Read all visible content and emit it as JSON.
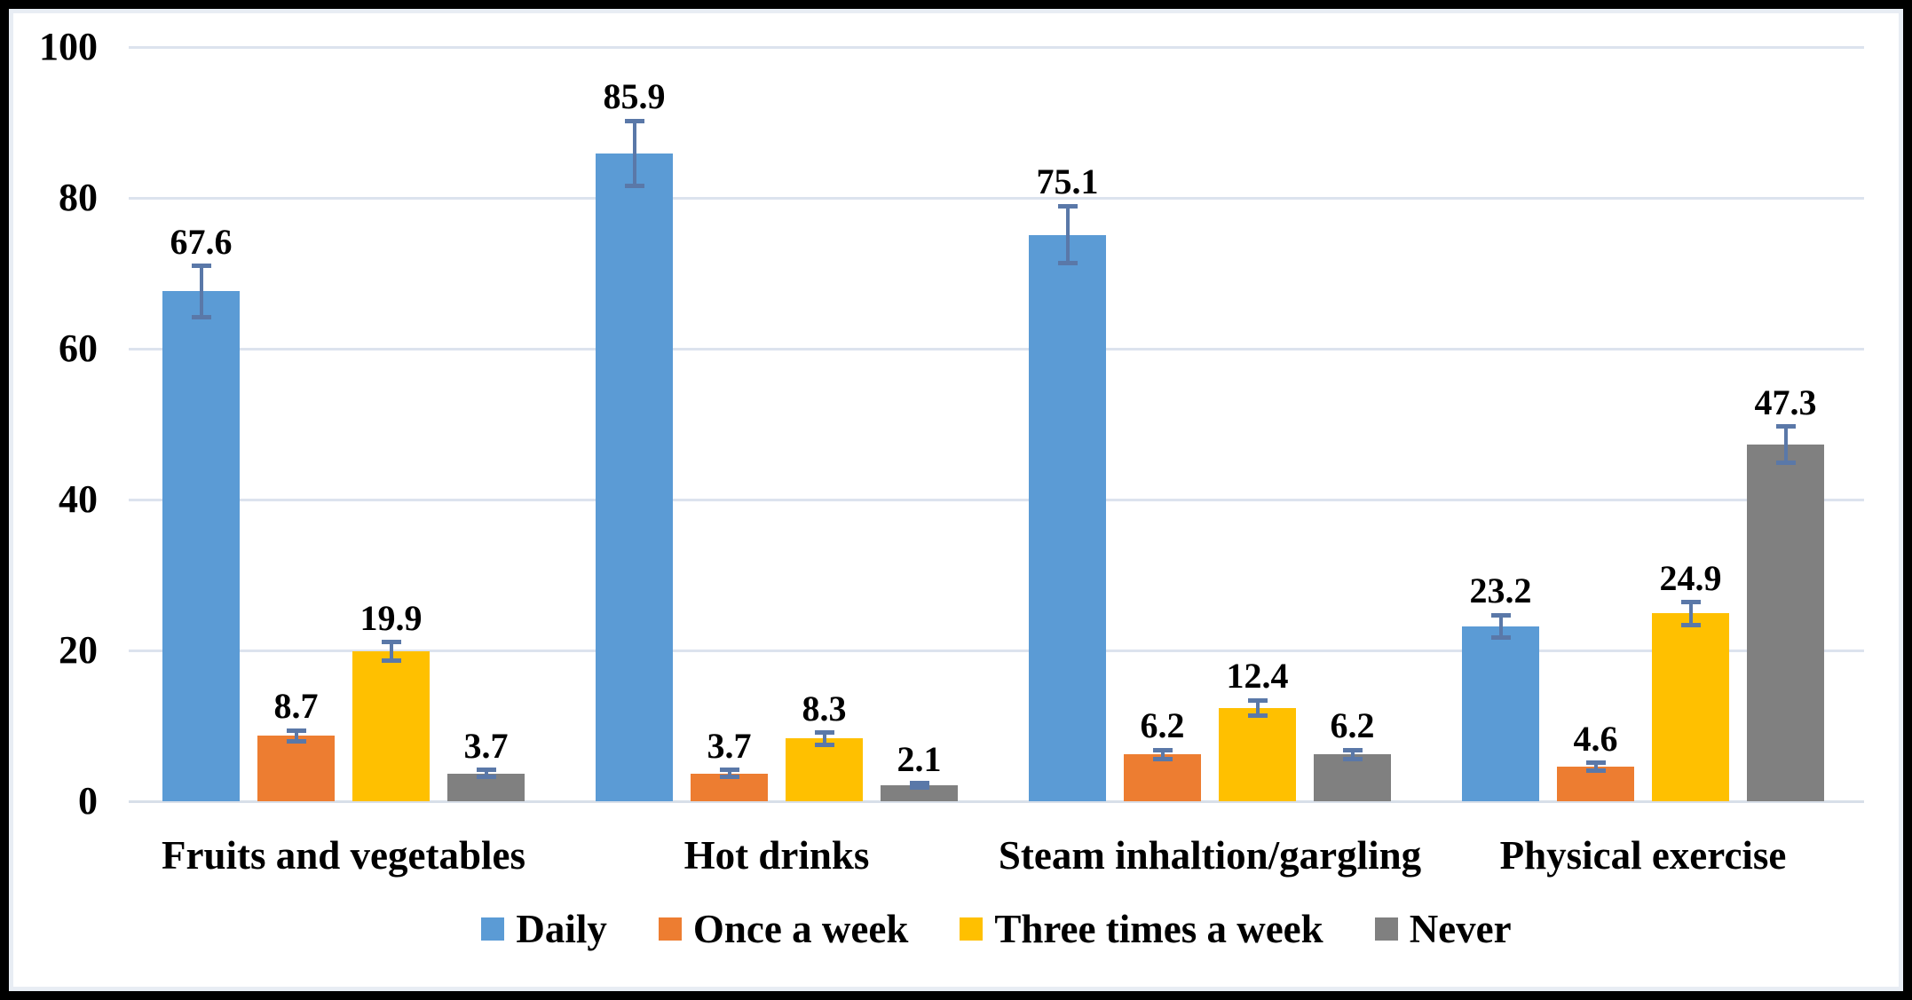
{
  "figure": {
    "background": "#ffffff",
    "frame_color": "#000000",
    "inner_edge_color": "#e8edf4"
  },
  "chart_data": {
    "type": "bar",
    "title": "",
    "categories": [
      "Fruits and vegetables",
      "Hot drinks",
      "Steam inhaltion/gargling",
      "Physical exercise"
    ],
    "series": [
      {
        "name": "Daily",
        "color": "#5B9BD5",
        "values": [
          67.6,
          85.9,
          75.1,
          23.2
        ],
        "errors": [
          3.4,
          4.3,
          3.8,
          1.5
        ]
      },
      {
        "name": "Once a week",
        "color": "#ED7D31",
        "values": [
          8.7,
          3.7,
          6.2,
          4.6
        ],
        "errors": [
          0.7,
          0.45,
          0.6,
          0.5
        ]
      },
      {
        "name": "Three times a week",
        "color": "#FFC000",
        "values": [
          19.9,
          8.3,
          12.4,
          24.9
        ],
        "errors": [
          1.2,
          0.8,
          1.0,
          1.5
        ]
      },
      {
        "name": "Never",
        "color": "#808080",
        "values": [
          3.7,
          2.1,
          6.2,
          47.3
        ],
        "errors": [
          0.45,
          0.3,
          0.6,
          2.4
        ]
      }
    ],
    "ylim": [
      0,
      100
    ],
    "yticks": [
      0,
      20,
      40,
      60,
      80,
      100
    ],
    "grid": true,
    "gridline_color": "#dce3ee",
    "axis_line_color": "#d8dfe9",
    "error_bar_color": "#5a78a8",
    "value_label_color": "#000000",
    "legend_position": "bottom",
    "value_labels": "one decimal, above error bar"
  }
}
